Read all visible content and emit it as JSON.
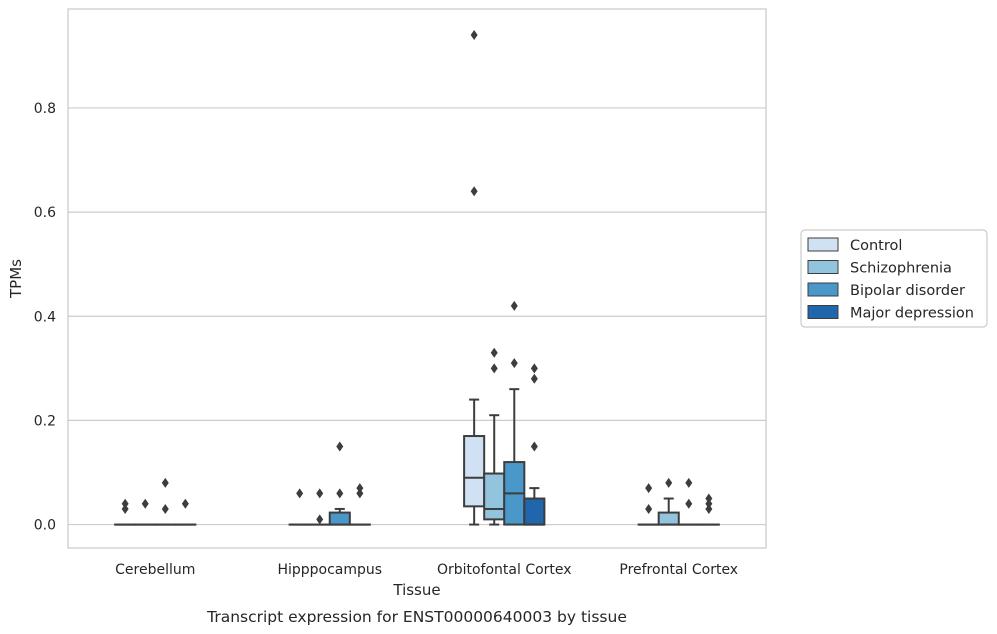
{
  "chart_data": {
    "type": "box",
    "xlabel": "Tissue",
    "ylabel": "TPMs",
    "caption": "Transcript expression for ENST00000640003 by tissue",
    "ylim": [
      -0.045,
      0.99
    ],
    "yticks": [
      "0.0",
      "0.2",
      "0.4",
      "0.6",
      "0.8"
    ],
    "ytick_values": [
      0.0,
      0.2,
      0.4,
      0.6,
      0.8
    ],
    "grid": "horizontal",
    "legend_position": "right",
    "categories": [
      "Cerebellum",
      "Hipppocampus",
      "Orbitofontal Cortex",
      "Prefrontal Cortex"
    ],
    "series": [
      {
        "name": "Control",
        "color": "#cfe1f2",
        "boxes": [
          {
            "q1": 0.0,
            "median": 0.0,
            "q3": 0.0,
            "whisker_low": 0.0,
            "whisker_high": 0.0,
            "outliers": [
              0.03,
              0.04
            ]
          },
          {
            "q1": 0.0,
            "median": 0.0,
            "q3": 0.0,
            "whisker_low": 0.0,
            "whisker_high": 0.0,
            "outliers": [
              0.06
            ]
          },
          {
            "q1": 0.035,
            "median": 0.09,
            "q3": 0.17,
            "whisker_low": 0.0,
            "whisker_high": 0.24,
            "outliers": [
              0.64,
              0.94
            ]
          },
          {
            "q1": 0.0,
            "median": 0.0,
            "q3": 0.0,
            "whisker_low": 0.0,
            "whisker_high": 0.0,
            "outliers": [
              0.03,
              0.07
            ]
          }
        ]
      },
      {
        "name": "Schizophrenia",
        "color": "#93c4de",
        "boxes": [
          {
            "q1": 0.0,
            "median": 0.0,
            "q3": 0.0,
            "whisker_low": 0.0,
            "whisker_high": 0.0,
            "outliers": [
              0.04
            ]
          },
          {
            "q1": 0.0,
            "median": 0.0,
            "q3": 0.0,
            "whisker_low": 0.0,
            "whisker_high": 0.0,
            "outliers": [
              0.01,
              0.06
            ]
          },
          {
            "q1": 0.01,
            "median": 0.03,
            "q3": 0.098,
            "whisker_low": 0.0,
            "whisker_high": 0.21,
            "outliers": [
              0.3,
              0.33
            ]
          },
          {
            "q1": 0.0,
            "median": 0.0,
            "q3": 0.023,
            "whisker_low": 0.0,
            "whisker_high": 0.05,
            "outliers": [
              0.08
            ]
          }
        ]
      },
      {
        "name": "Bipolar disorder",
        "color": "#4a98c9",
        "boxes": [
          {
            "q1": 0.0,
            "median": 0.0,
            "q3": 0.0,
            "whisker_low": 0.0,
            "whisker_high": 0.0,
            "outliers": [
              0.03,
              0.08
            ]
          },
          {
            "q1": 0.0,
            "median": 0.0,
            "q3": 0.023,
            "whisker_low": 0.0,
            "whisker_high": 0.03,
            "outliers": [
              0.06,
              0.15
            ]
          },
          {
            "q1": 0.0,
            "median": 0.06,
            "q3": 0.12,
            "whisker_low": 0.0,
            "whisker_high": 0.26,
            "outliers": [
              0.31,
              0.42
            ]
          },
          {
            "q1": 0.0,
            "median": 0.0,
            "q3": 0.0,
            "whisker_low": 0.0,
            "whisker_high": 0.0,
            "outliers": [
              0.04,
              0.08
            ]
          }
        ]
      },
      {
        "name": "Major depression",
        "color": "#2166ac",
        "boxes": [
          {
            "q1": 0.0,
            "median": 0.0,
            "q3": 0.0,
            "whisker_low": 0.0,
            "whisker_high": 0.0,
            "outliers": [
              0.04
            ]
          },
          {
            "q1": 0.0,
            "median": 0.0,
            "q3": 0.0,
            "whisker_low": 0.0,
            "whisker_high": 0.0,
            "outliers": [
              0.06,
              0.07
            ]
          },
          {
            "q1": 0.0,
            "median": 0.0,
            "q3": 0.05,
            "whisker_low": 0.0,
            "whisker_high": 0.07,
            "outliers": [
              0.15,
              0.28,
              0.3
            ]
          },
          {
            "q1": 0.0,
            "median": 0.0,
            "q3": 0.0,
            "whisker_low": 0.0,
            "whisker_high": 0.0,
            "outliers": [
              0.03,
              0.04,
              0.05
            ]
          }
        ]
      }
    ]
  }
}
